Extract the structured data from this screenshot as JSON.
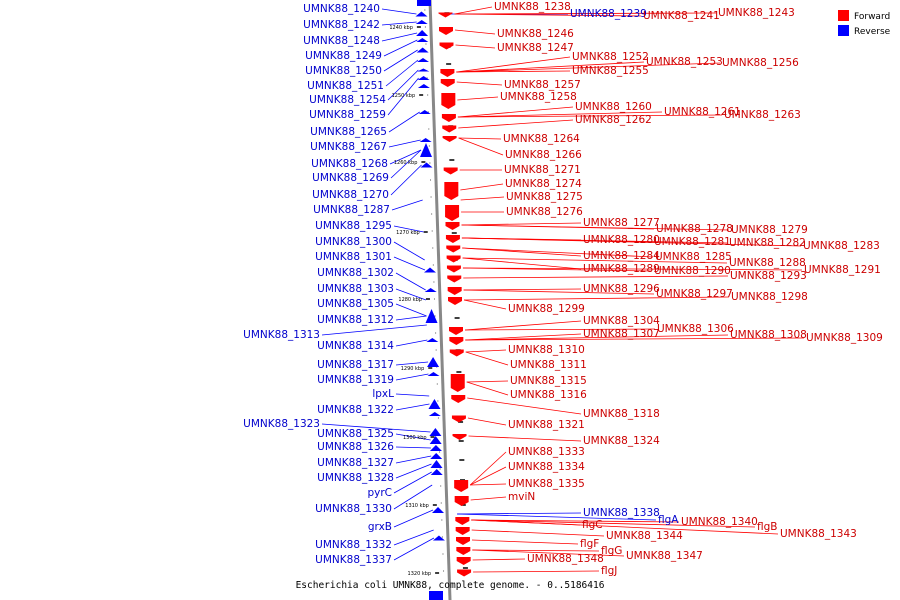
{
  "caption": "Escherichia coli UMNK88, complete genome. - 0..5186416",
  "colors": {
    "forward": "#ff0000",
    "reverse": "#0000ff",
    "forward_text": "#cc0000",
    "reverse_text": "#0000cc",
    "backbone": "#888888"
  },
  "legend": [
    {
      "label": "Forward",
      "color": "#ff0000"
    },
    {
      "label": "Reverse",
      "color": "#0000ff"
    }
  ],
  "ticks": [
    "1240 kbp",
    "1250 kbp",
    "1260 kbp",
    "1270 kbp",
    "1280 kbp",
    "1290 kbp",
    "1300 kbp",
    "1310 kbp",
    "1320 kbp"
  ],
  "reverse_genes": [
    "UMNK88_1240",
    "UMNK88_1242",
    "UMNK88_1248",
    "UMNK88_1249",
    "UMNK88_1250",
    "UMNK88_1251",
    "UMNK88_1254",
    "UMNK88_1259",
    "UMNK88_1265",
    "UMNK88_1267",
    "UMNK88_1268",
    "UMNK88_1269",
    "UMNK88_1270",
    "UMNK88_1287",
    "UMNK88_1295",
    "UMNK88_1300",
    "UMNK88_1301",
    "UMNK88_1302",
    "UMNK88_1303",
    "UMNK88_1305",
    "UMNK88_1312",
    "UMNK88_1313",
    "UMNK88_1314",
    "UMNK88_1317",
    "UMNK88_1319",
    "lpxL",
    "UMNK88_1322",
    "UMNK88_1323",
    "UMNK88_1325",
    "UMNK88_1326",
    "UMNK88_1327",
    "UMNK88_1328",
    "pyrC",
    "UMNK88_1330",
    "grxB",
    "UMNK88_1332",
    "UMNK88_1337",
    "UMNK88_1239",
    "UMNK88_1338",
    "flgA"
  ],
  "forward_genes": [
    "UMNK88_1238",
    "UMNK88_1241",
    "UMNK88_1243",
    "UMNK88_1246",
    "UMNK88_1247",
    "UMNK88_1252",
    "UMNK88_1253",
    "UMNK88_1256",
    "UMNK88_1255",
    "UMNK88_1257",
    "UMNK88_1258",
    "UMNK88_1260",
    "UMNK88_1261",
    "UMNK88_1263",
    "UMNK88_1262",
    "UMNK88_1264",
    "UMNK88_1266",
    "UMNK88_1271",
    "UMNK88_1274",
    "UMNK88_1275",
    "UMNK88_1276",
    "UMNK88_1277",
    "UMNK88_1278",
    "UMNK88_1279",
    "UMNK88_1280",
    "UMNK88_1281",
    "UMNK88_1282",
    "UMNK88_1283",
    "UMNK88_1284",
    "UMNK88_1285",
    "UMNK88_1288",
    "UMNK88_1289",
    "UMNK88_1290",
    "UMNK88_1293",
    "UMNK88_1291",
    "UMNK88_1296",
    "UMNK88_1297",
    "UMNK88_1298",
    "UMNK88_1299",
    "UMNK88_1304",
    "UMNK88_1306",
    "UMNK88_1307",
    "UMNK88_1308",
    "UMNK88_1309",
    "UMNK88_1310",
    "UMNK88_1311",
    "UMNK88_1315",
    "UMNK88_1316",
    "UMNK88_1318",
    "UMNK88_1321",
    "UMNK88_1324",
    "UMNK88_1333",
    "UMNK88_1334",
    "UMNK88_1335",
    "mviN",
    "flgC",
    "UMNK88_1340",
    "flgB",
    "UMNK88_1343",
    "UMNK88_1344",
    "flgF",
    "flgG",
    "UMNK88_1347",
    "UMNK88_1348",
    "flgJ"
  ]
}
